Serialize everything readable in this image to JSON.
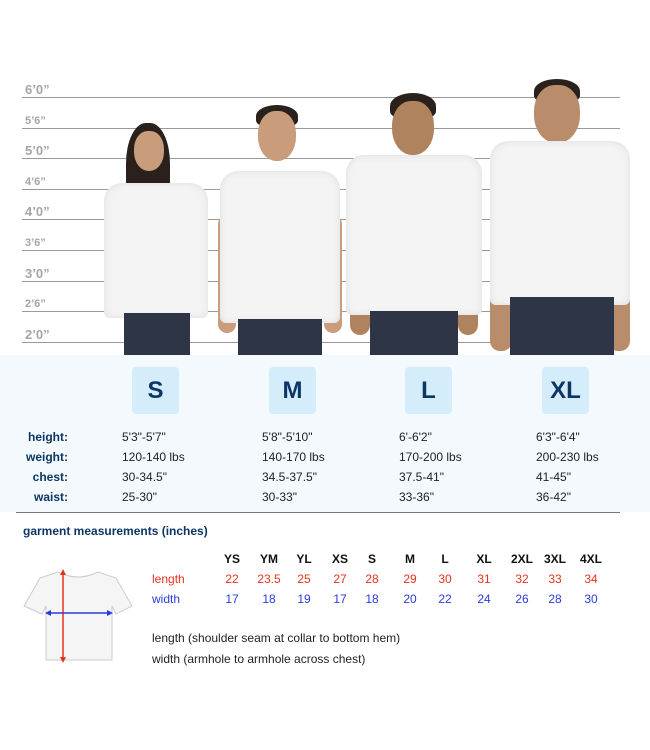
{
  "ruler": [
    "6’0”",
    "5’6”",
    "5’0”",
    "4’6”",
    "4’0”",
    "3’6”",
    "3’0”",
    "2’6”",
    "2’0”"
  ],
  "sizes": [
    {
      "label": "S",
      "height": "5'3\"-5'7\"",
      "weight": "120-140 lbs",
      "chest": "30-34.5\"",
      "waist": "25-30\""
    },
    {
      "label": "M",
      "height": "5'8\"-5'10\"",
      "weight": "140-170 lbs",
      "chest": "34.5-37.5\"",
      "waist": "30-33\""
    },
    {
      "label": "L",
      "height": "6'-6'2\"",
      "weight": "170-200 lbs",
      "chest": "37.5-41\"",
      "waist": "33-36\""
    },
    {
      "label": "XL",
      "height": "6'3\"-6'4\"",
      "weight": "200-230 lbs",
      "chest": "41-45\"",
      "waist": "36-42\""
    }
  ],
  "row_labels": {
    "height": "height:",
    "weight": "weight:",
    "chest": "chest:",
    "waist": "waist:"
  },
  "garment": {
    "title": "garment measurements (inches)",
    "sizes": [
      "YS",
      "YM",
      "YL",
      "XS",
      "S",
      "M",
      "L",
      "XL",
      "2XL",
      "3XL",
      "4XL"
    ],
    "length_label": "length",
    "width_label": "width",
    "length": [
      "22",
      "23.5",
      "25",
      "27",
      "28",
      "29",
      "30",
      "31",
      "32",
      "33",
      "34"
    ],
    "width": [
      "17",
      "18",
      "19",
      "17",
      "18",
      "20",
      "22",
      "24",
      "26",
      "28",
      "30"
    ],
    "note_length": "length (shoulder seam at collar to bottom hem)",
    "note_width": "width (armhole to armhole across chest)"
  },
  "colors": {
    "navy": "#0c3664",
    "length": "#e8321c",
    "width": "#2b3ae0",
    "badge": "#d5ecfb"
  }
}
